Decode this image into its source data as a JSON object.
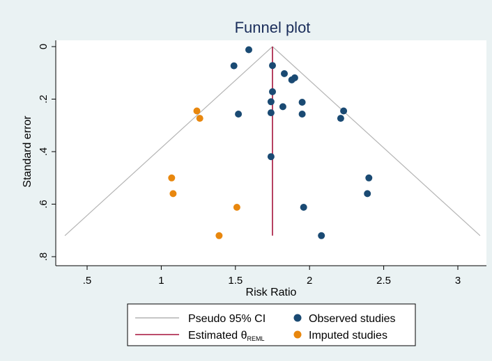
{
  "chart_data": {
    "type": "scatter",
    "title": "Funnel plot",
    "xlabel": "Risk Ratio",
    "ylabel": "Standard error",
    "xlim": [
      0.3,
      3.15
    ],
    "ylim": [
      0,
      0.82
    ],
    "y_reversed": true,
    "x_ticks": [
      {
        "value": 0.5,
        "label": ".5"
      },
      {
        "value": 1,
        "label": "1"
      },
      {
        "value": 1.5,
        "label": "1.5"
      },
      {
        "value": 2,
        "label": "2"
      },
      {
        "value": 2.5,
        "label": "2.5"
      },
      {
        "value": 3,
        "label": "3"
      }
    ],
    "y_ticks": [
      {
        "value": 0,
        "label": "0"
      },
      {
        "value": 0.2,
        "label": ".2"
      },
      {
        "value": 0.4,
        "label": ".4"
      },
      {
        "value": 0.6,
        "label": ".6"
      },
      {
        "value": 0.8,
        "label": ".8"
      }
    ],
    "theta": 1.75,
    "theta_se_max": 0.72,
    "funnel": {
      "apex": [
        1.75,
        0
      ],
      "left_base": [
        0.35,
        0.72
      ],
      "right_base": [
        3.15,
        0.72
      ]
    },
    "series": [
      {
        "name": "Observed studies",
        "color": "#1a4a73",
        "points": [
          [
            1.59,
            0.012
          ],
          [
            1.49,
            0.073
          ],
          [
            1.75,
            0.072
          ],
          [
            1.83,
            0.103
          ],
          [
            1.9,
            0.119
          ],
          [
            1.88,
            0.127
          ],
          [
            1.75,
            0.172
          ],
          [
            1.74,
            0.21
          ],
          [
            1.95,
            0.212
          ],
          [
            1.82,
            0.229
          ],
          [
            2.23,
            0.245
          ],
          [
            2.21,
            0.273
          ],
          [
            1.52,
            0.257
          ],
          [
            1.74,
            0.252
          ],
          [
            1.95,
            0.257
          ],
          [
            1.74,
            0.419
          ],
          [
            2.4,
            0.5
          ],
          [
            2.39,
            0.56
          ],
          [
            1.96,
            0.612
          ],
          [
            2.08,
            0.72
          ]
        ]
      },
      {
        "name": "Imputed studies",
        "color": "#e8870e",
        "points": [
          [
            1.24,
            0.245
          ],
          [
            1.26,
            0.273
          ],
          [
            1.07,
            0.5
          ],
          [
            1.08,
            0.56
          ],
          [
            1.51,
            0.612
          ],
          [
            1.39,
            0.72
          ]
        ]
      }
    ],
    "colors": {
      "funnel": "#b4b4b4",
      "estimate": "#a5123a",
      "observed": "#1a4a73",
      "imputed": "#e8870e",
      "title": "#1a2d5a",
      "background": "#eaf2f3",
      "plot_area": "#ffffff"
    },
    "legend": {
      "placement": "bottom",
      "items": [
        {
          "label": "Pseudo 95% CI",
          "kind": "line",
          "color": "#b4b4b4"
        },
        {
          "label": "Observed studies",
          "kind": "marker",
          "color": "#1a4a73"
        },
        {
          "label": "Estimated θ",
          "subscript": "REML",
          "kind": "line",
          "color": "#a5123a"
        },
        {
          "label": "Imputed studies",
          "kind": "marker",
          "color": "#e8870e"
        }
      ]
    },
    "grid": false
  }
}
